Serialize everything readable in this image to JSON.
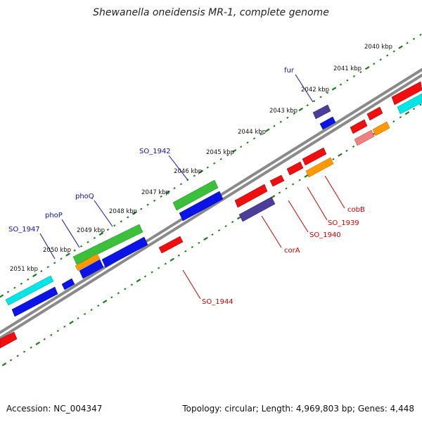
{
  "title": "Shewanella oneidensis MR-1, complete genome",
  "footer": {
    "accession": "Accession: NC_004347",
    "stats": "Topology: circular; Length: 4,969,803 bp; Genes: 4,448"
  },
  "colors": {
    "backbone": "#7a7a7a",
    "tick_ruler": "#1f7a1f",
    "label_forward": "#1111aa",
    "label_reverse": "#cc0000"
  },
  "ruler_labels": [
    "2040 kbp",
    "2041 kbp",
    "2042 kbp",
    "2043 kbp",
    "2044 kbp",
    "2045 kbp",
    "2046 kbp",
    "2047 kbp",
    "2048 kbp",
    "2049 kbp",
    "2050 kbp",
    "2051 kbp"
  ],
  "gene_labels": [
    {
      "name": "fur",
      "strand": "forward"
    },
    {
      "name": "SO_1942",
      "strand": "forward"
    },
    {
      "name": "phoQ",
      "strand": "forward"
    },
    {
      "name": "phoP",
      "strand": "forward"
    },
    {
      "name": "SO_1947",
      "strand": "forward"
    },
    {
      "name": "cobB",
      "strand": "reverse"
    },
    {
      "name": "SO_1939",
      "strand": "reverse"
    },
    {
      "name": "SO_1940",
      "strand": "reverse"
    },
    {
      "name": "corA",
      "strand": "reverse"
    },
    {
      "name": "SO_1944",
      "strand": "reverse"
    }
  ]
}
